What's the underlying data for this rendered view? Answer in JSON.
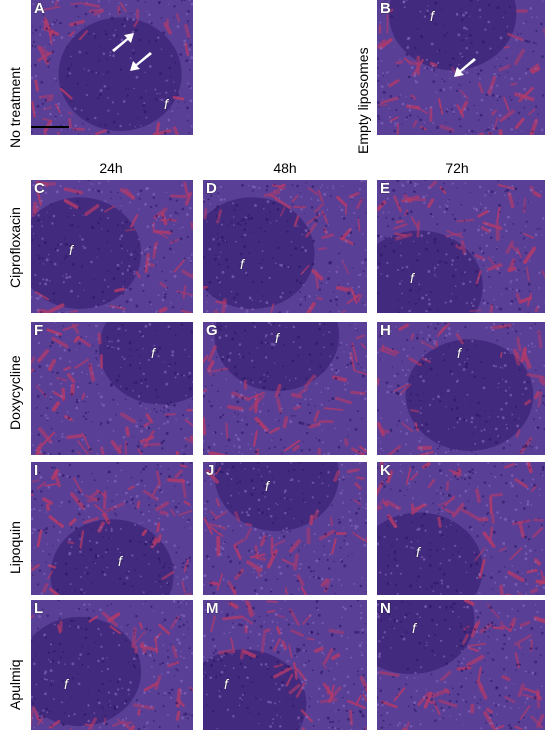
{
  "rows": {
    "no_treatment": "No treatment",
    "empty_liposomes": "Empty liposomes",
    "ciprofloxacin": "Ciprofloxacin",
    "doxycycline": "Doxycycline",
    "lipoquin": "Lipoquin",
    "apulmiq": "Apulmiq"
  },
  "columns": {
    "c24": "24h",
    "c48": "48h",
    "c72": "72h"
  },
  "panels": {
    "A": "A",
    "B": "B",
    "C": "C",
    "D": "D",
    "E": "E",
    "F": "F",
    "G": "G",
    "H": "H",
    "I": "I",
    "J": "J",
    "K": "K",
    "L": "L",
    "M": "M",
    "N": "N"
  },
  "follicle_marker": "f",
  "colors": {
    "tissue_base": "#5a3f97",
    "follicle": "#3b2476",
    "red_pulp": "#b23a6a"
  }
}
